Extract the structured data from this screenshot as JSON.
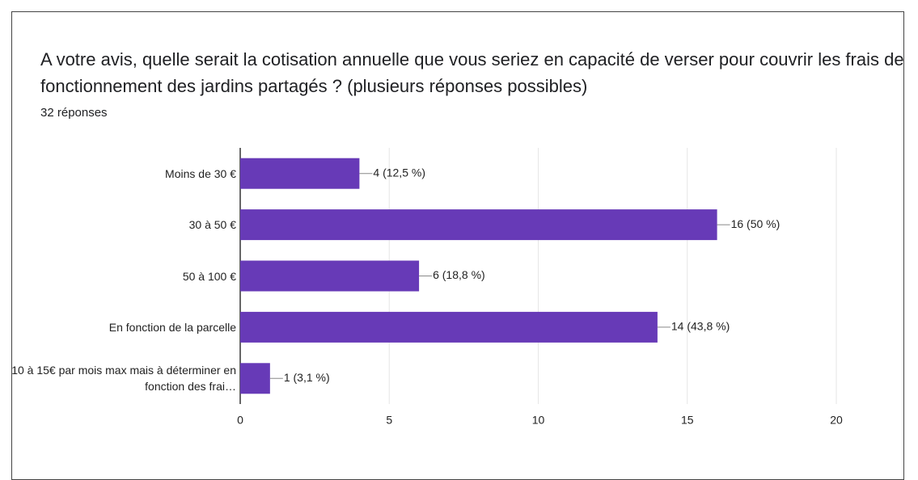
{
  "chart_data": {
    "type": "bar",
    "orientation": "horizontal",
    "title": "A votre avis, quelle serait la cotisation annuelle que vous seriez en capacité de verser pour couvrir les frais de fonctionnement des jardins partagés ? (plusieurs réponses possibles)",
    "subtitle": "32 réponses",
    "categories": [
      "Moins de 30 €",
      "30 à 50 €",
      "50 à 100 €",
      "En fonction de la parcelle",
      "10 à 15€ par mois max mais à déterminer en fonction des frai…"
    ],
    "values": [
      4,
      16,
      6,
      14,
      1
    ],
    "value_labels": [
      "4 (12,5 %)",
      "16 (50 %)",
      "6 (18,8 %)",
      "14 (43,8 %)",
      "1 (3,1 %)"
    ],
    "color": "#673ab7",
    "xlim": [
      0,
      20
    ],
    "xticks": [
      0,
      5,
      10,
      15,
      20
    ],
    "grid": true
  }
}
